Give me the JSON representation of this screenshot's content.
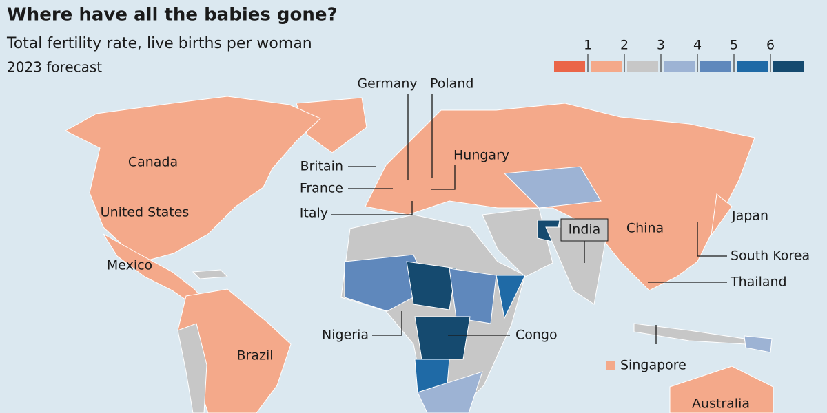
{
  "header": {
    "title": "Where have all the babies gone?",
    "subtitle": "Total fertility rate, live births per woman",
    "note": "2023 forecast"
  },
  "legend": {
    "ticks": [
      1,
      2,
      3,
      4,
      5,
      6
    ],
    "colors": [
      "#ea6548",
      "#f4a98a",
      "#c7c7c7",
      "#9db3d4",
      "#5f88bc",
      "#1f6aa6",
      "#154a6f"
    ]
  },
  "labels": [
    {
      "text": "Germany"
    },
    {
      "text": "Poland"
    },
    {
      "text": "Hungary"
    },
    {
      "text": "Britain"
    },
    {
      "text": "France"
    },
    {
      "text": "Italy"
    },
    {
      "text": "Canada"
    },
    {
      "text": "United States"
    },
    {
      "text": "Mexico"
    },
    {
      "text": "India"
    },
    {
      "text": "China"
    },
    {
      "text": "Japan"
    },
    {
      "text": "South Korea"
    },
    {
      "text": "Thailand"
    },
    {
      "text": "Nigeria"
    },
    {
      "text": "Congo"
    },
    {
      "text": "Brazil"
    },
    {
      "text": "Singapore"
    },
    {
      "text": "Australia"
    }
  ]
}
